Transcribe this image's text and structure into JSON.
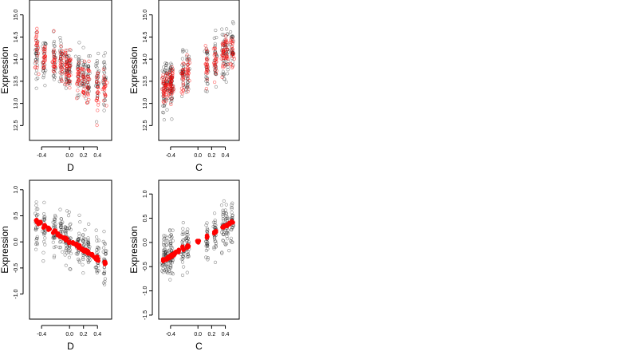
{
  "chart_data": [
    {
      "type": "scatter",
      "id": "top-left",
      "xlabel": "D",
      "ylabel": "Expression",
      "xlim": [
        -0.55,
        0.58
      ],
      "ylim": [
        12.2,
        15.3
      ],
      "x_ticks": [
        -0.4,
        0.0,
        0.2,
        0.4
      ],
      "x_tick_labels": [
        "-0.4",
        "0.0",
        "0.2",
        "0.4"
      ],
      "y_ticks": [
        12.5,
        13.0,
        13.5,
        14.0,
        14.5,
        15.0
      ],
      "y_tick_labels": [
        "12.5",
        "13.0",
        "13.5",
        "14.0",
        "14.5",
        "15.0"
      ],
      "x_groups": [
        -0.47,
        -0.36,
        -0.22,
        -0.12,
        -0.05,
        0.0,
        0.13,
        0.2,
        0.27,
        0.4,
        0.5
      ],
      "series": [
        {
          "style": "black-hollow",
          "center": [
            14.05,
            13.95,
            13.95,
            13.9,
            13.8,
            13.8,
            13.75,
            13.65,
            13.6,
            13.5,
            13.55
          ],
          "spread": 0.45
        },
        {
          "style": "red-hollow",
          "center": [
            14.2,
            14.05,
            13.95,
            13.85,
            13.75,
            13.7,
            13.65,
            13.55,
            13.45,
            13.35,
            13.3
          ],
          "spread": 0.35
        }
      ],
      "grid": false
    },
    {
      "type": "scatter",
      "id": "top-right",
      "xlabel": "C",
      "ylabel": "Expression",
      "xlim": [
        -0.55,
        0.58
      ],
      "ylim": [
        12.2,
        15.3
      ],
      "x_ticks": [
        -0.4,
        0.0,
        0.2,
        0.4
      ],
      "x_tick_labels": [
        "-0.4",
        "0.0",
        "0.2",
        "0.4"
      ],
      "y_ticks": [
        12.5,
        13.0,
        13.5,
        14.0,
        14.5,
        15.0
      ],
      "y_tick_labels": [
        "12.5",
        "13.0",
        "13.5",
        "14.0",
        "14.5",
        "15.0"
      ],
      "x_groups": [
        -0.5,
        -0.46,
        -0.4,
        -0.38,
        -0.22,
        -0.15,
        0.13,
        0.25,
        0.37,
        0.42,
        0.5
      ],
      "series": [
        {
          "style": "black-hollow",
          "center": [
            13.3,
            13.4,
            13.5,
            13.5,
            13.65,
            13.75,
            13.85,
            13.95,
            14.1,
            14.15,
            14.2
          ],
          "spread": 0.5
        },
        {
          "style": "red-hollow",
          "center": [
            13.3,
            13.35,
            13.45,
            13.5,
            13.6,
            13.7,
            13.9,
            13.95,
            14.1,
            14.15,
            14.2
          ],
          "spread": 0.3
        }
      ],
      "grid": false
    },
    {
      "type": "scatter",
      "id": "bottom-left",
      "xlabel": "D",
      "ylabel": "Expression",
      "xlim": [
        -0.55,
        0.58
      ],
      "ylim": [
        -1.45,
        1.15
      ],
      "x_ticks": [
        -0.4,
        0.0,
        0.2,
        0.4
      ],
      "x_tick_labels": [
        "-0.4",
        "0.0",
        "0.2",
        "0.4"
      ],
      "y_ticks": [
        -1.0,
        -0.5,
        0.0,
        0.5,
        1.0
      ],
      "y_tick_labels": [
        "-1.0",
        "-0.5",
        "0.0",
        "0.5",
        "1.0"
      ],
      "x_groups": [
        -0.47,
        -0.36,
        -0.22,
        -0.12,
        -0.05,
        0.0,
        0.13,
        0.2,
        0.27,
        0.4,
        0.5
      ],
      "series": [
        {
          "style": "black-hollow",
          "center": [
            0.3,
            0.25,
            0.2,
            0.15,
            0.05,
            0.0,
            -0.1,
            -0.15,
            -0.2,
            -0.3,
            -0.35
          ],
          "spread": 0.35
        }
      ],
      "fitted": {
        "x": [
          -0.47,
          -0.42,
          -0.36,
          -0.3,
          -0.22,
          -0.17,
          -0.12,
          -0.08,
          -0.05,
          0.0,
          0.05,
          0.1,
          0.13,
          0.17,
          0.2,
          0.24,
          0.27,
          0.32,
          0.37,
          0.4,
          0.5
        ],
        "y": [
          0.4,
          0.36,
          0.3,
          0.25,
          0.19,
          0.15,
          0.1,
          0.07,
          0.05,
          0.0,
          -0.03,
          -0.07,
          -0.1,
          -0.12,
          -0.16,
          -0.18,
          -0.22,
          -0.25,
          -0.3,
          -0.33,
          -0.4
        ]
      },
      "grid": false
    },
    {
      "type": "scatter",
      "id": "bottom-right",
      "xlabel": "C",
      "ylabel": "Expression",
      "xlim": [
        -0.55,
        0.58
      ],
      "ylim": [
        -1.55,
        1.25
      ],
      "x_ticks": [
        -0.4,
        0.0,
        0.2,
        0.4
      ],
      "x_tick_labels": [
        "-0.4",
        "0.0",
        "0.2",
        "0.4"
      ],
      "y_ticks": [
        -1.5,
        -1.0,
        -0.5,
        0.0,
        0.5,
        1.0
      ],
      "y_tick_labels": [
        "-1.5",
        "-1.0",
        "-0.5",
        "0.0",
        "0.5",
        "1.0"
      ],
      "x_groups": [
        -0.5,
        -0.46,
        -0.4,
        -0.38,
        -0.22,
        -0.15,
        0.13,
        0.25,
        0.37,
        0.42,
        0.5
      ],
      "series": [
        {
          "style": "black-hollow",
          "center": [
            -0.35,
            -0.3,
            -0.25,
            -0.2,
            -0.1,
            -0.05,
            0.1,
            0.2,
            0.3,
            0.35,
            0.4
          ],
          "spread": 0.4
        }
      ],
      "fitted": {
        "x": [
          -0.5,
          -0.46,
          -0.43,
          -0.4,
          -0.38,
          -0.34,
          -0.28,
          -0.22,
          -0.15,
          0.0,
          0.13,
          0.25,
          0.37,
          0.42,
          0.46,
          0.5
        ],
        "y": [
          -0.38,
          -0.35,
          -0.32,
          -0.28,
          -0.26,
          -0.22,
          -0.18,
          -0.13,
          -0.08,
          0.02,
          0.12,
          0.22,
          0.32,
          0.36,
          0.38,
          0.42
        ]
      },
      "grid": false
    }
  ]
}
